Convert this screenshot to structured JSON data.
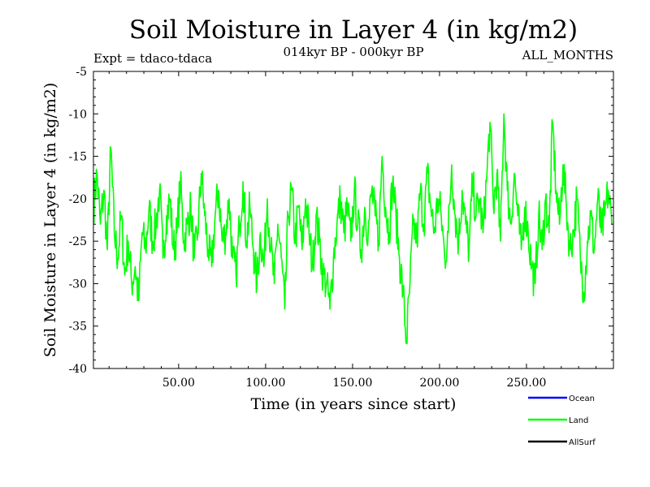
{
  "chart_data": {
    "type": "line",
    "title": "Soil Moisture in Layer 4 (in kg/m2)",
    "subtitle": "014kyr BP - 000kyr BP",
    "left_label": "Expt = tdaco-tdaca",
    "right_label": "ALL_MONTHS",
    "xlabel": "Time (in years since start)",
    "ylabel": "Soil Moisture in Layer 4 (in kg/m2)",
    "xlim": [
      1,
      300
    ],
    "ylim": [
      -40,
      -5
    ],
    "x_ticks": [
      50,
      100,
      150,
      200,
      250
    ],
    "x_tick_labels": [
      "50.00",
      "100.00",
      "150.00",
      "200.00",
      "250.00"
    ],
    "y_ticks": [
      -40,
      -35,
      -30,
      -25,
      -20,
      -15,
      -10,
      -5
    ],
    "y_tick_labels": [
      "-40",
      "-35",
      "-30",
      "-25",
      "-20",
      "-15",
      "-10",
      "-5"
    ],
    "legend": [
      {
        "name": "Ocean",
        "color": "#0000ff"
      },
      {
        "name": "Land",
        "color": "#00ff00"
      },
      {
        "name": "AllSurf",
        "color": "#000000"
      }
    ],
    "series": [
      {
        "name": "Land",
        "color": "#00ff00",
        "note": "annual-resolution noisy series; anchor values (year, value) estimated from plot",
        "anchors": [
          [
            1,
            -21
          ],
          [
            3,
            -17
          ],
          [
            5,
            -23
          ],
          [
            7,
            -19
          ],
          [
            9,
            -26
          ],
          [
            11,
            -14
          ],
          [
            13,
            -24
          ],
          [
            15,
            -27
          ],
          [
            17,
            -22
          ],
          [
            19,
            -29
          ],
          [
            21,
            -25
          ],
          [
            23,
            -30
          ],
          [
            25,
            -28
          ],
          [
            27,
            -32
          ],
          [
            29,
            -24
          ],
          [
            31,
            -26
          ],
          [
            33,
            -21
          ],
          [
            35,
            -25
          ],
          [
            37,
            -23
          ],
          [
            39,
            -19
          ],
          [
            41,
            -27
          ],
          [
            43,
            -22
          ],
          [
            45,
            -20
          ],
          [
            47,
            -26
          ],
          [
            49,
            -24
          ],
          [
            51,
            -18
          ],
          [
            53,
            -25
          ],
          [
            55,
            -23
          ],
          [
            57,
            -21
          ],
          [
            59,
            -27
          ],
          [
            61,
            -24
          ],
          [
            63,
            -17
          ],
          [
            65,
            -22
          ],
          [
            67,
            -26
          ],
          [
            69,
            -28
          ],
          [
            71,
            -22
          ],
          [
            73,
            -19
          ],
          [
            75,
            -25
          ],
          [
            77,
            -24
          ],
          [
            79,
            -20
          ],
          [
            81,
            -27
          ],
          [
            83,
            -29
          ],
          [
            85,
            -23
          ],
          [
            87,
            -18
          ],
          [
            89,
            -25
          ],
          [
            91,
            -21
          ],
          [
            93,
            -26
          ],
          [
            95,
            -30
          ],
          [
            97,
            -24
          ],
          [
            99,
            -28
          ],
          [
            101,
            -20
          ],
          [
            103,
            -26
          ],
          [
            105,
            -30
          ],
          [
            107,
            -23
          ],
          [
            109,
            -27
          ],
          [
            111,
            -33
          ],
          [
            113,
            -22
          ],
          [
            115,
            -19
          ],
          [
            117,
            -25
          ],
          [
            119,
            -21
          ],
          [
            121,
            -26
          ],
          [
            123,
            -20
          ],
          [
            125,
            -24
          ],
          [
            127,
            -28
          ],
          [
            129,
            -22
          ],
          [
            131,
            -25
          ],
          [
            133,
            -29
          ],
          [
            135,
            -30
          ],
          [
            137,
            -33
          ],
          [
            139,
            -27
          ],
          [
            141,
            -23
          ],
          [
            143,
            -20
          ],
          [
            145,
            -24
          ],
          [
            147,
            -21
          ],
          [
            149,
            -25
          ],
          [
            151,
            -19
          ],
          [
            153,
            -23
          ],
          [
            155,
            -26
          ],
          [
            157,
            -21
          ],
          [
            159,
            -24
          ],
          [
            161,
            -19
          ],
          [
            163,
            -22
          ],
          [
            165,
            -25
          ],
          [
            167,
            -15
          ],
          [
            169,
            -21
          ],
          [
            171,
            -24
          ],
          [
            173,
            -18
          ],
          [
            175,
            -22
          ],
          [
            177,
            -27
          ],
          [
            179,
            -31
          ],
          [
            181,
            -37
          ],
          [
            183,
            -30
          ],
          [
            185,
            -23
          ],
          [
            187,
            -25
          ],
          [
            189,
            -19
          ],
          [
            191,
            -23
          ],
          [
            193,
            -17
          ],
          [
            195,
            -21
          ],
          [
            197,
            -24
          ],
          [
            199,
            -20
          ],
          [
            201,
            -22
          ],
          [
            203,
            -27
          ],
          [
            205,
            -24
          ],
          [
            207,
            -16
          ],
          [
            209,
            -22
          ],
          [
            211,
            -25
          ],
          [
            213,
            -19
          ],
          [
            215,
            -23
          ],
          [
            217,
            -26
          ],
          [
            219,
            -18
          ],
          [
            221,
            -22
          ],
          [
            223,
            -20
          ],
          [
            225,
            -24
          ],
          [
            227,
            -18
          ],
          [
            229,
            -11
          ],
          [
            231,
            -21
          ],
          [
            233,
            -17
          ],
          [
            235,
            -25
          ],
          [
            237,
            -10
          ],
          [
            239,
            -19
          ],
          [
            241,
            -23
          ],
          [
            243,
            -17
          ],
          [
            245,
            -22
          ],
          [
            247,
            -26
          ],
          [
            249,
            -21
          ],
          [
            251,
            -24
          ],
          [
            253,
            -28
          ],
          [
            255,
            -30
          ],
          [
            257,
            -22
          ],
          [
            259,
            -26
          ],
          [
            261,
            -20
          ],
          [
            263,
            -24
          ],
          [
            265,
            -11
          ],
          [
            267,
            -19
          ],
          [
            269,
            -23
          ],
          [
            271,
            -16
          ],
          [
            273,
            -21
          ],
          [
            275,
            -26
          ],
          [
            277,
            -24
          ],
          [
            279,
            -20
          ],
          [
            281,
            -27
          ],
          [
            283,
            -31
          ],
          [
            285,
            -25
          ],
          [
            287,
            -22
          ],
          [
            289,
            -26
          ],
          [
            291,
            -20
          ],
          [
            293,
            -24
          ],
          [
            295,
            -22
          ],
          [
            297,
            -19
          ],
          [
            299,
            -23
          ]
        ]
      }
    ]
  }
}
